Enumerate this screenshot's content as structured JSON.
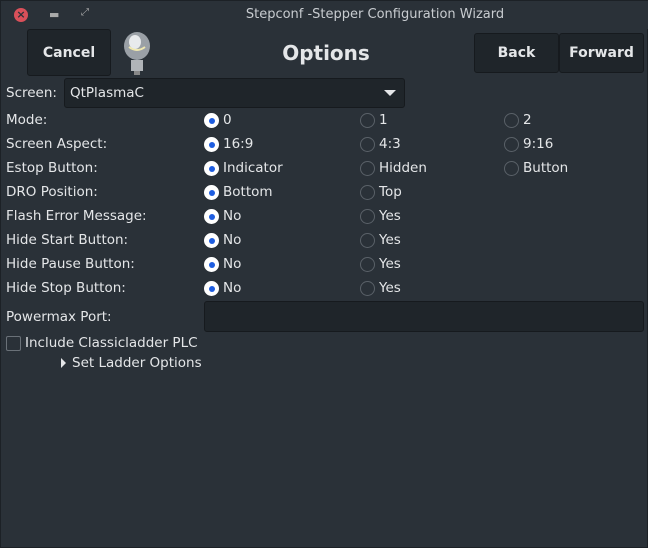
{
  "window": {
    "title": "Stepconf -Stepper Configuration Wizard"
  },
  "toolbar": {
    "cancel": "Cancel",
    "heading": "Options",
    "back": "Back",
    "forward": "Forward"
  },
  "screen": {
    "label": "Screen:",
    "value": "QtPlasmaC"
  },
  "rows": [
    {
      "label": "Mode:",
      "options": [
        "0",
        "1",
        "2"
      ],
      "selected": 0
    },
    {
      "label": "Screen Aspect:",
      "options": [
        "16:9",
        "4:3",
        "9:16"
      ],
      "selected": 0
    },
    {
      "label": "Estop Button:",
      "options": [
        "Indicator",
        "Hidden",
        "Button"
      ],
      "selected": 0
    },
    {
      "label": "DRO Position:",
      "options": [
        "Bottom",
        "Top"
      ],
      "selected": 0
    },
    {
      "label": "Flash Error Message:",
      "options": [
        "No",
        "Yes"
      ],
      "selected": 0
    },
    {
      "label": "Hide Start Button:",
      "options": [
        "No",
        "Yes"
      ],
      "selected": 0
    },
    {
      "label": "Hide Pause Button:",
      "options": [
        "No",
        "Yes"
      ],
      "selected": 0
    },
    {
      "label": "Hide Stop Button:",
      "options": [
        "No",
        "Yes"
      ],
      "selected": 0
    }
  ],
  "powermax": {
    "label": "Powermax Port:",
    "value": ""
  },
  "classicladder": {
    "label": "Include Classicladder PLC",
    "checked": false
  },
  "ladder_options": {
    "label": "Set Ladder Options"
  }
}
